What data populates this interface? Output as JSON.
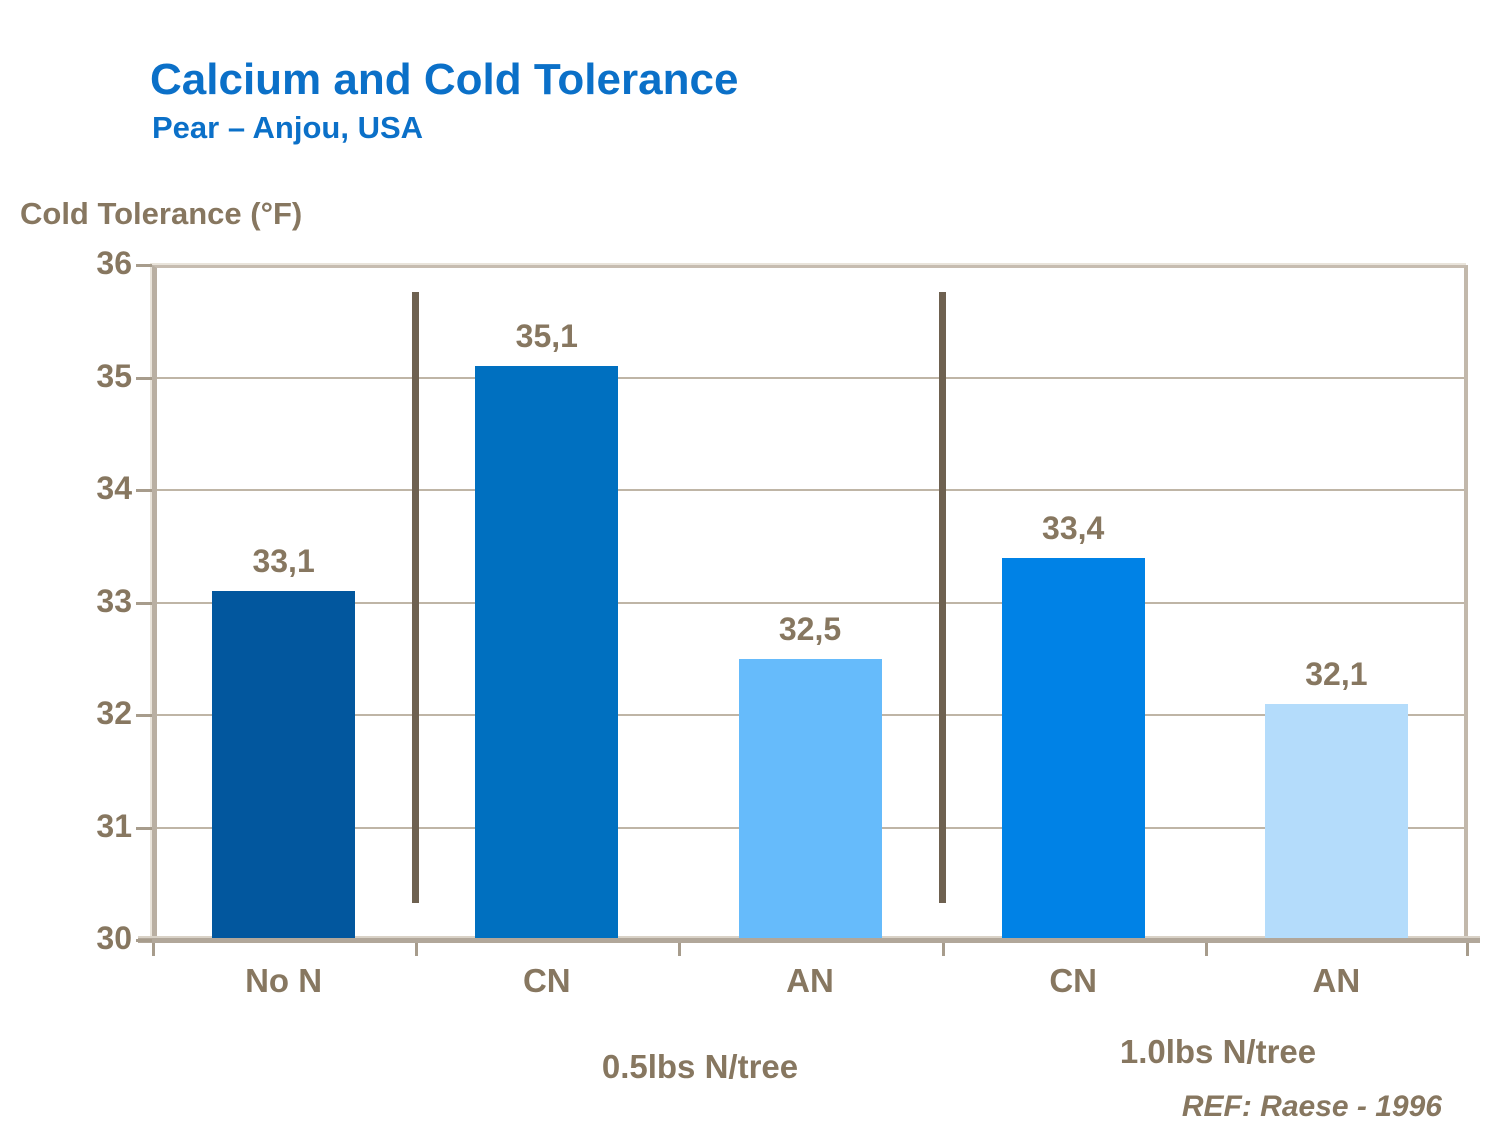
{
  "header": {
    "title": "Calcium and Cold Tolerance",
    "subtitle": "Pear – Anjou, USA"
  },
  "reference": "REF: Raese - 1996",
  "colors": {
    "title_blue": "#0B70C8",
    "label_taupe": "#877760",
    "group_divider": "#6E6150",
    "gridline": "#BFB5A6",
    "plot_border": "#C2B8AB",
    "axis_band": "#B1A79A",
    "tick": "#A79C8C",
    "background": "#FFFFFF"
  },
  "chart_data": {
    "type": "bar",
    "title": "Calcium and Cold Tolerance",
    "subtitle": "Pear – Anjou, USA",
    "ylabel": "Cold Tolerance (°F)",
    "xlabel": "",
    "ylim": [
      30,
      36
    ],
    "yticks": [
      36,
      35,
      34,
      33,
      32,
      31,
      30
    ],
    "grid": true,
    "legend": false,
    "categories": [
      "No N",
      "CN",
      "AN",
      "CN",
      "AN"
    ],
    "values": [
      33.1,
      35.1,
      32.5,
      33.4,
      32.1
    ],
    "value_labels": [
      "33,1",
      "35,1",
      "32,5",
      "33,4",
      "32,1"
    ],
    "bar_colors": [
      "#02579E",
      "#0070C0",
      "#66BBFB",
      "#0082E6",
      "#B4DCFB"
    ],
    "group_divider_boundaries": [
      1,
      3
    ],
    "groups": [
      {
        "label": "0.5lbs N/tree",
        "categories": [
          "CN",
          "AN"
        ]
      },
      {
        "label": "1.0lbs N/tree",
        "categories": [
          "CN",
          "AN"
        ]
      }
    ],
    "annotations": [
      "REF: Raese - 1996"
    ]
  }
}
